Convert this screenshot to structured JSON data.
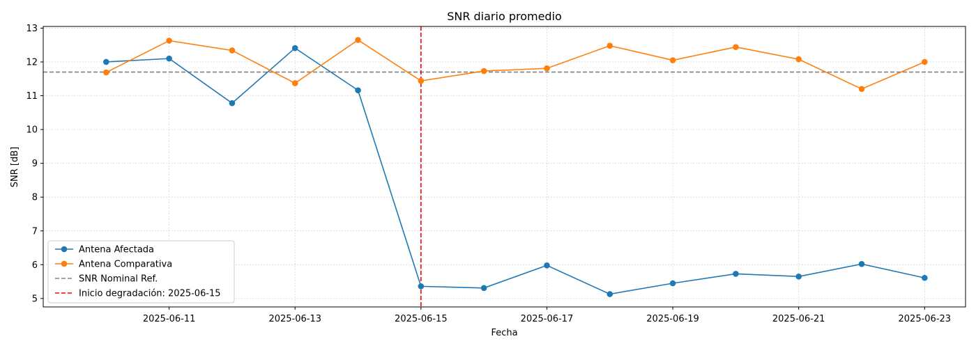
{
  "chart_data": {
    "type": "line",
    "title": "SNR diario promedio",
    "xlabel": "Fecha",
    "ylabel": "SNR [dB]",
    "ylim": [
      4.75,
      13.05
    ],
    "yticks": [
      5,
      6,
      7,
      8,
      9,
      10,
      11,
      12,
      13
    ],
    "xlim": [
      "2025-06-09",
      "2025-06-23"
    ],
    "xticks": [
      "2025-06-11",
      "2025-06-13",
      "2025-06-15",
      "2025-06-17",
      "2025-06-19",
      "2025-06-21",
      "2025-06-23"
    ],
    "grid": true,
    "legend_position": "lower-left",
    "x": [
      "2025-06-10",
      "2025-06-11",
      "2025-06-12",
      "2025-06-13",
      "2025-06-14",
      "2025-06-15",
      "2025-06-16",
      "2025-06-17",
      "2025-06-18",
      "2025-06-19",
      "2025-06-20",
      "2025-06-21",
      "2025-06-22",
      "2025-06-23"
    ],
    "series": [
      {
        "name": "Antena Afectada",
        "color": "#1f77b4",
        "values": [
          12.0,
          12.1,
          10.78,
          12.41,
          11.16,
          5.36,
          5.31,
          5.98,
          5.13,
          5.45,
          5.73,
          5.65,
          6.02,
          5.61
        ]
      },
      {
        "name": "Antena Comparativa",
        "color": "#ff7f0e",
        "values": [
          11.69,
          12.63,
          12.34,
          11.37,
          12.65,
          11.44,
          11.73,
          11.81,
          12.48,
          12.05,
          12.44,
          12.08,
          11.2,
          12.0
        ]
      }
    ],
    "reference_lines": [
      {
        "orientation": "horizontal",
        "value": 11.7,
        "color": "#808080",
        "style": "dashed",
        "label": "SNR Nominal Ref."
      },
      {
        "orientation": "vertical",
        "value": "2025-06-15",
        "color": "#ff0000",
        "style": "dashed",
        "label": "Inicio degradación: 2025-06-15"
      }
    ]
  }
}
